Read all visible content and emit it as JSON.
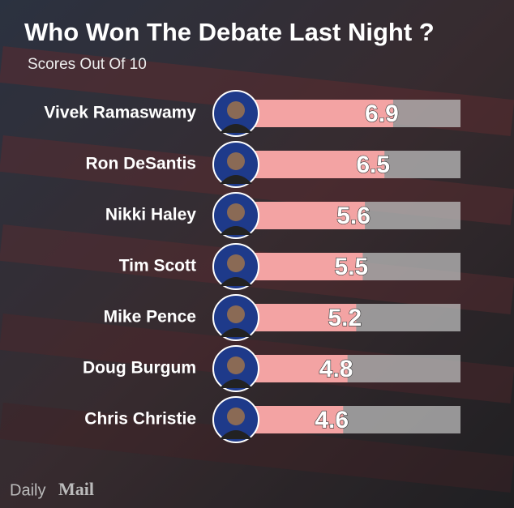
{
  "chart_data": {
    "type": "bar",
    "orientation": "horizontal",
    "title": "Who Won The Debate Last Night ?",
    "subtitle": "Scores Out Of 10",
    "categories": [
      "Vivek Ramaswamy",
      "Ron DeSantis",
      "Nikki Haley",
      "Tim Scott",
      "Mike Pence",
      "Doug Burgum",
      "Chris Christie"
    ],
    "values": [
      6.9,
      6.5,
      5.6,
      5.5,
      5.2,
      4.8,
      4.6
    ],
    "color": "#f3a3a3",
    "xlim": [
      0,
      10
    ],
    "logo": [
      "Daily",
      "Mail"
    ]
  }
}
